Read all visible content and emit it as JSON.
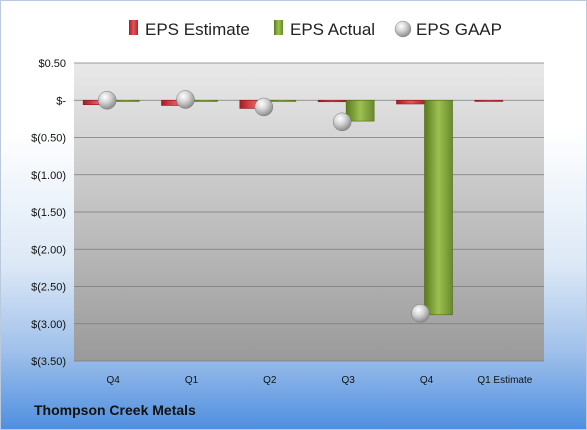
{
  "chart_data": {
    "type": "bar",
    "title": "",
    "xlabel": "",
    "ylabel": "",
    "categories": [
      "Q4",
      "Q1",
      "Q2",
      "Q3",
      "Q4",
      "Q1 Estimate"
    ],
    "series": [
      {
        "name": "EPS Estimate",
        "type": "bar",
        "color": "#d6323a",
        "values": [
          -0.06,
          -0.07,
          -0.11,
          -0.02,
          -0.05,
          -0.01
        ]
      },
      {
        "name": "EPS Actual",
        "type": "bar",
        "color": "#7fa33a",
        "values": [
          0.0,
          -0.01,
          0.0,
          -0.28,
          -2.88,
          null
        ]
      },
      {
        "name": "EPS GAAP",
        "type": "marker",
        "color": "#b8b8b8",
        "values": [
          0.0,
          0.01,
          -0.09,
          -0.29,
          -2.86,
          null
        ]
      }
    ],
    "y_ticks": [
      0.5,
      0,
      -0.5,
      -1.0,
      -1.5,
      -2.0,
      -2.5,
      -3.0,
      -3.5
    ],
    "y_tick_labels": [
      "$0.50",
      "$-",
      "$(0.50)",
      "$(1.00)",
      "$(1.50)",
      "$(2.00)",
      "$(2.50)",
      "$(3.00)",
      "$(3.50)"
    ],
    "ylim": [
      -3.5,
      0.5
    ],
    "grid": true,
    "legend_position": "top"
  },
  "footer": {
    "company": "Thompson Creek Metals"
  },
  "colors": {
    "background_top": "#ffffff",
    "background_bottom": "#4f8fe0",
    "plot_top": "#e6e6e6",
    "plot_bottom": "#9a9a9a"
  }
}
